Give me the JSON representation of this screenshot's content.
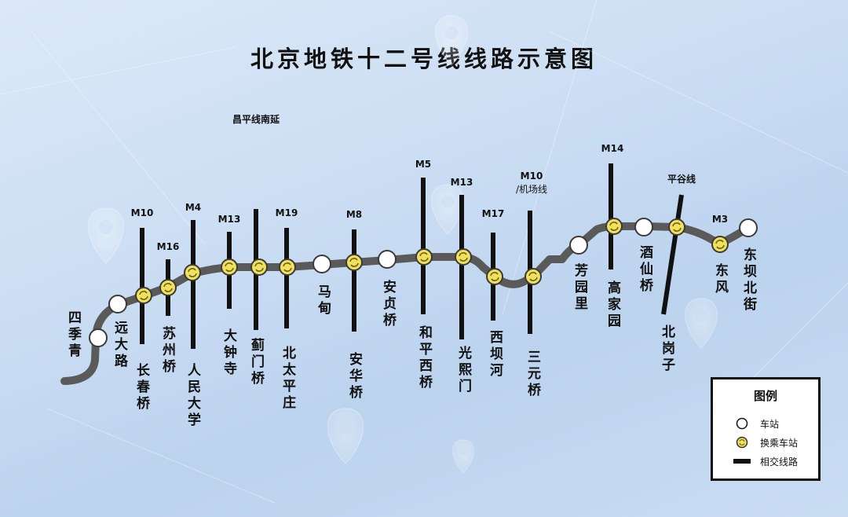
{
  "title": "北京地铁十二号线线路示意图",
  "colors": {
    "main_line": "#5a5a5a",
    "transfer_fill": "#f0e05a",
    "transfer_arrow": "#6b6020",
    "station_fill": "#ffffff",
    "intersect_line": "#111111",
    "background": "#cddff4"
  },
  "stations": [
    {
      "id": "si-ji-qing",
      "name": "四季青",
      "transfer": false
    },
    {
      "id": "yuan-da-lu",
      "name": "远大路",
      "transfer": false
    },
    {
      "id": "chang-chun-qiao",
      "name": "长春桥",
      "transfer": true,
      "line": "M10"
    },
    {
      "id": "su-zhou-qiao",
      "name": "苏州桥",
      "transfer": true,
      "line": "M16"
    },
    {
      "id": "ren-min-da-xue",
      "name": "人民大学",
      "transfer": true,
      "line": "M4"
    },
    {
      "id": "da-zhong-si",
      "name": "大钟寺",
      "transfer": true,
      "line": "M13"
    },
    {
      "id": "ji-men-qiao",
      "name": "蓟门桥",
      "transfer": true,
      "line": "昌平线南延"
    },
    {
      "id": "bei-tai-ping-zhuang",
      "name": "北太平庄",
      "transfer": true,
      "line": "M19"
    },
    {
      "id": "ma-dian",
      "name": "马甸",
      "transfer": false
    },
    {
      "id": "an-hua-qiao",
      "name": "安华桥",
      "transfer": true,
      "line": "M8"
    },
    {
      "id": "an-zhen-qiao",
      "name": "安贞桥",
      "transfer": false
    },
    {
      "id": "he-ping-xi-qiao",
      "name": "和平西桥",
      "transfer": true,
      "line": "M5"
    },
    {
      "id": "guang-xi-men",
      "name": "光熙门",
      "transfer": true,
      "line": "M13"
    },
    {
      "id": "xi-ba-he",
      "name": "西坝河",
      "transfer": true,
      "line": "M17"
    },
    {
      "id": "san-yuan-qiao",
      "name": "三元桥",
      "transfer": true,
      "line": "M10/机场线"
    },
    {
      "id": "fang-yuan-li",
      "name": "芳园里",
      "transfer": false
    },
    {
      "id": "gao-jia-yuan",
      "name": "高家园",
      "transfer": true,
      "line": "M14"
    },
    {
      "id": "jiu-xian-qiao",
      "name": "酒仙桥",
      "transfer": false
    },
    {
      "id": "bei-gang-zi",
      "name": "北岗子",
      "transfer": true,
      "line": "平谷线"
    },
    {
      "id": "dong-feng",
      "name": "东风",
      "transfer": true,
      "line": "M3"
    },
    {
      "id": "dong-ba-bei-jie",
      "name": "东坝北街",
      "transfer": false
    }
  ],
  "legend": {
    "title": "图例",
    "station": "车站",
    "transfer": "换乘车站",
    "intersect": "相交线路"
  }
}
